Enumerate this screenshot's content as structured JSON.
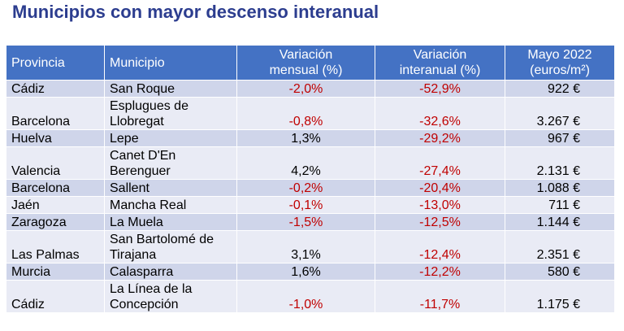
{
  "title": "Municipios con mayor descenso interanual",
  "columns": {
    "provincia": "Provincia",
    "municipio": "Municipio",
    "mensual_l1": "Variación",
    "mensual_l2": "mensual (%)",
    "interanual_l1": "Variación",
    "interanual_l2": "interanual (%)",
    "precio_l1": "Mayo 2022",
    "precio_l2": "(euros/m²)"
  },
  "rows": [
    {
      "provincia": "Cádiz",
      "municipio_l1": "San Roque",
      "municipio_l2": "",
      "mensual": "-2,0%",
      "interanual": "-52,9%",
      "precio": "922 €"
    },
    {
      "provincia": "Barcelona",
      "municipio_l1": "Esplugues de",
      "municipio_l2": "Llobregat",
      "mensual": "-0,8%",
      "interanual": "-32,6%",
      "precio": "3.267 €"
    },
    {
      "provincia": "Huelva",
      "municipio_l1": "Lepe",
      "municipio_l2": "",
      "mensual": "1,3%",
      "interanual": "-29,2%",
      "precio": "967 €"
    },
    {
      "provincia": "Valencia",
      "municipio_l1": "Canet D'En",
      "municipio_l2": "Berenguer",
      "mensual": "4,2%",
      "interanual": "-27,4%",
      "precio": "2.131 €"
    },
    {
      "provincia": "Barcelona",
      "municipio_l1": "Sallent",
      "municipio_l2": "",
      "mensual": "-0,2%",
      "interanual": "-20,4%",
      "precio": "1.088 €"
    },
    {
      "provincia": "Jaén",
      "municipio_l1": "Mancha Real",
      "municipio_l2": "",
      "mensual": "-0,1%",
      "interanual": "-13,0%",
      "precio": "711 €"
    },
    {
      "provincia": "Zaragoza",
      "municipio_l1": "La Muela",
      "municipio_l2": "",
      "mensual": "-1,5%",
      "interanual": "-12,5%",
      "precio": "1.144 €"
    },
    {
      "provincia": "Las Palmas",
      "municipio_l1": "San Bartolomé de",
      "municipio_l2": "Tirajana",
      "mensual": "3,1%",
      "interanual": "-12,4%",
      "precio": "2.351 €"
    },
    {
      "provincia": "Murcia",
      "municipio_l1": "Calasparra",
      "municipio_l2": "",
      "mensual": "1,6%",
      "interanual": "-12,2%",
      "precio": "580 €"
    },
    {
      "provincia": "Cádiz",
      "municipio_l1": "La Línea de la",
      "municipio_l2": "Concepción",
      "mensual": "-1,0%",
      "interanual": "-11,7%",
      "precio": "1.175 €"
    }
  ],
  "colors": {
    "title": "#2c3d8f",
    "header_bg": "#4472c4",
    "row_dark": "#cfd5ea",
    "row_light": "#e9ebf5",
    "negative": "#c00000"
  }
}
